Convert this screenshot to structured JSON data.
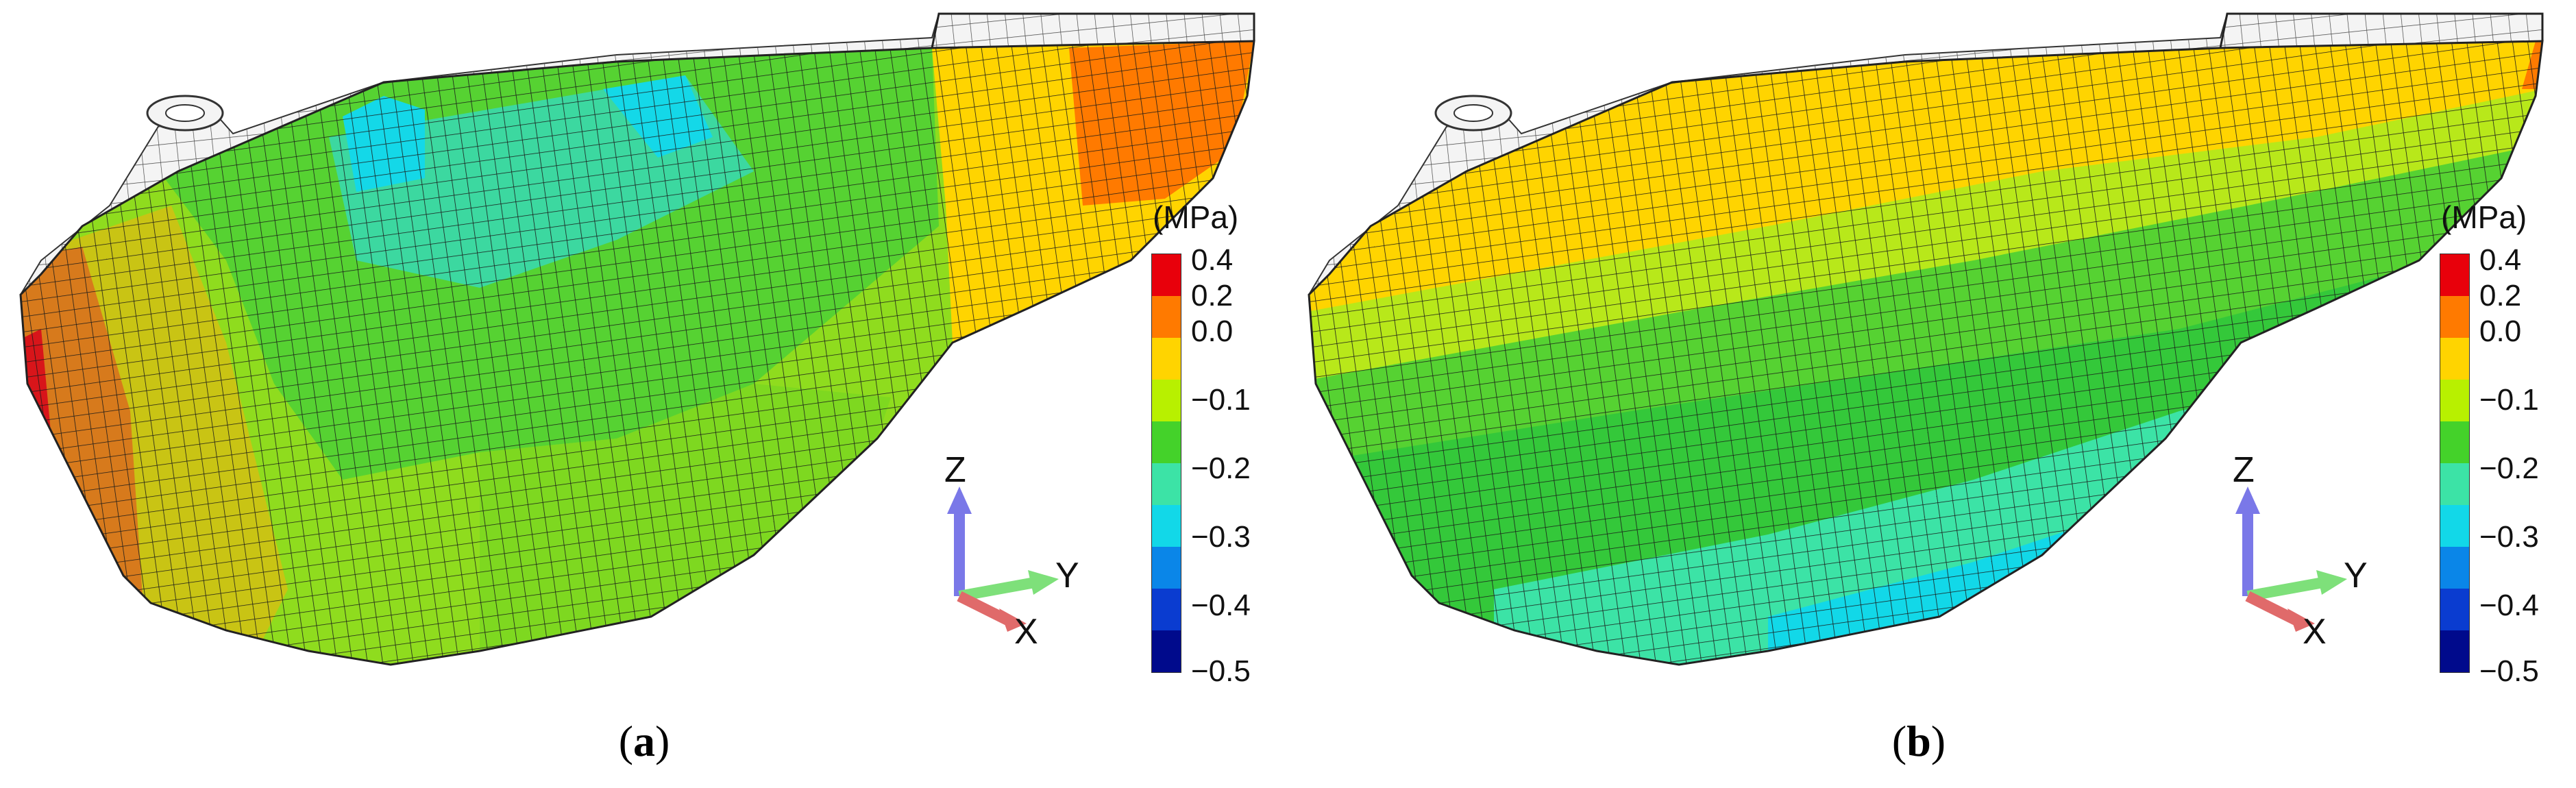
{
  "panels": [
    {
      "id": "a",
      "caption_label": "a"
    },
    {
      "id": "b",
      "caption_label": "b"
    }
  ],
  "legend": {
    "unit": "(MPa)",
    "ticks": [
      "0.4",
      "0.2",
      "0.0",
      "−0.1",
      "−0.2",
      "−0.3",
      "−0.4",
      "−0.5"
    ],
    "colors": [
      "#e8000b",
      "#ff7a00",
      "#ffd400",
      "#b8f000",
      "#44d22a",
      "#3ce3a6",
      "#12d8e8",
      "#0a86e8",
      "#0a3cd0",
      "#000a8c"
    ]
  },
  "axes": {
    "z": "Z",
    "y": "Y",
    "x": "X"
  },
  "colors": {
    "mesh_line": "#1a1a1a",
    "unmeshed": "#f4f4f4",
    "z_arrow": "#7a78e8",
    "y_arrow": "#7ee07a",
    "x_arrow": "#e06a6a"
  }
}
